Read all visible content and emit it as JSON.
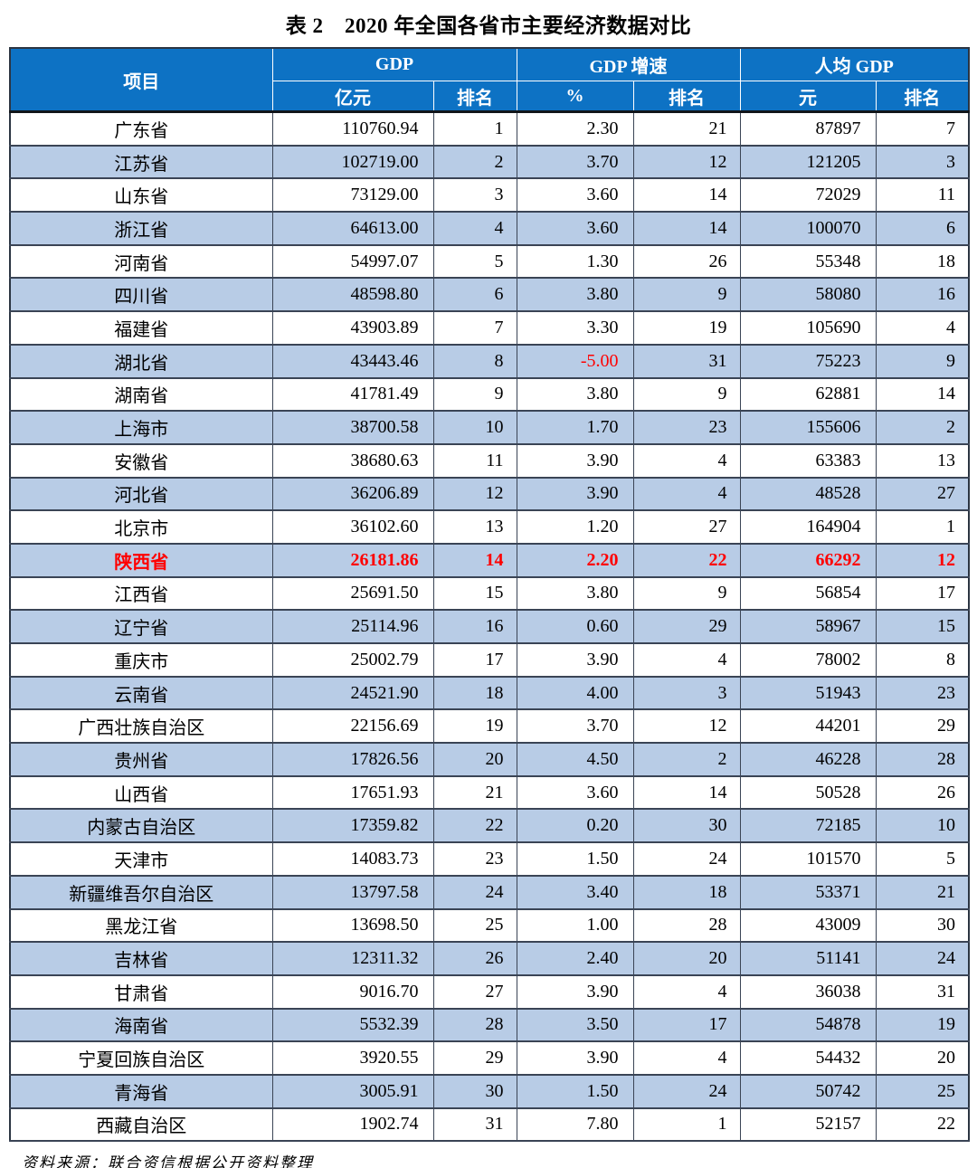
{
  "title": "表 2 2020 年全国各省市主要经济数据对比",
  "source_note": "资料来源：联合资信根据公开资料整理",
  "colors": {
    "header_bg": "#0d72c4",
    "header_text": "#ffffff",
    "alt_row_bg": "#b8cce6",
    "highlight_text": "#ff0000",
    "border": "#3a4455"
  },
  "table": {
    "header": {
      "item": "项目",
      "gdp_group": "GDP",
      "growth_group": "GDP 增速",
      "per_capita_group": "人均 GDP",
      "gdp_unit": "亿元",
      "gdp_rank": "排名",
      "growth_unit": "%",
      "growth_rank": "排名",
      "per_capita_unit": "元",
      "per_capita_rank": "排名"
    },
    "rows": [
      {
        "name": "广东省",
        "gdp": "110760.94",
        "gdp_rank": "1",
        "growth": "2.30",
        "growth_rank": "21",
        "pc_gdp": "87897",
        "pc_rank": "7",
        "highlight": false,
        "growth_red": false
      },
      {
        "name": "江苏省",
        "gdp": "102719.00",
        "gdp_rank": "2",
        "growth": "3.70",
        "growth_rank": "12",
        "pc_gdp": "121205",
        "pc_rank": "3",
        "highlight": false,
        "growth_red": false
      },
      {
        "name": "山东省",
        "gdp": "73129.00",
        "gdp_rank": "3",
        "growth": "3.60",
        "growth_rank": "14",
        "pc_gdp": "72029",
        "pc_rank": "11",
        "highlight": false,
        "growth_red": false
      },
      {
        "name": "浙江省",
        "gdp": "64613.00",
        "gdp_rank": "4",
        "growth": "3.60",
        "growth_rank": "14",
        "pc_gdp": "100070",
        "pc_rank": "6",
        "highlight": false,
        "growth_red": false
      },
      {
        "name": "河南省",
        "gdp": "54997.07",
        "gdp_rank": "5",
        "growth": "1.30",
        "growth_rank": "26",
        "pc_gdp": "55348",
        "pc_rank": "18",
        "highlight": false,
        "growth_red": false
      },
      {
        "name": "四川省",
        "gdp": "48598.80",
        "gdp_rank": "6",
        "growth": "3.80",
        "growth_rank": "9",
        "pc_gdp": "58080",
        "pc_rank": "16",
        "highlight": false,
        "growth_red": false
      },
      {
        "name": "福建省",
        "gdp": "43903.89",
        "gdp_rank": "7",
        "growth": "3.30",
        "growth_rank": "19",
        "pc_gdp": "105690",
        "pc_rank": "4",
        "highlight": false,
        "growth_red": false
      },
      {
        "name": "湖北省",
        "gdp": "43443.46",
        "gdp_rank": "8",
        "growth": "-5.00",
        "growth_rank": "31",
        "pc_gdp": "75223",
        "pc_rank": "9",
        "highlight": false,
        "growth_red": true
      },
      {
        "name": "湖南省",
        "gdp": "41781.49",
        "gdp_rank": "9",
        "growth": "3.80",
        "growth_rank": "9",
        "pc_gdp": "62881",
        "pc_rank": "14",
        "highlight": false,
        "growth_red": false
      },
      {
        "name": "上海市",
        "gdp": "38700.58",
        "gdp_rank": "10",
        "growth": "1.70",
        "growth_rank": "23",
        "pc_gdp": "155606",
        "pc_rank": "2",
        "highlight": false,
        "growth_red": false
      },
      {
        "name": "安徽省",
        "gdp": "38680.63",
        "gdp_rank": "11",
        "growth": "3.90",
        "growth_rank": "4",
        "pc_gdp": "63383",
        "pc_rank": "13",
        "highlight": false,
        "growth_red": false
      },
      {
        "name": "河北省",
        "gdp": "36206.89",
        "gdp_rank": "12",
        "growth": "3.90",
        "growth_rank": "4",
        "pc_gdp": "48528",
        "pc_rank": "27",
        "highlight": false,
        "growth_red": false
      },
      {
        "name": "北京市",
        "gdp": "36102.60",
        "gdp_rank": "13",
        "growth": "1.20",
        "growth_rank": "27",
        "pc_gdp": "164904",
        "pc_rank": "1",
        "highlight": false,
        "growth_red": false
      },
      {
        "name": "陕西省",
        "gdp": "26181.86",
        "gdp_rank": "14",
        "growth": "2.20",
        "growth_rank": "22",
        "pc_gdp": "66292",
        "pc_rank": "12",
        "highlight": true,
        "growth_red": false
      },
      {
        "name": "江西省",
        "gdp": "25691.50",
        "gdp_rank": "15",
        "growth": "3.80",
        "growth_rank": "9",
        "pc_gdp": "56854",
        "pc_rank": "17",
        "highlight": false,
        "growth_red": false
      },
      {
        "name": "辽宁省",
        "gdp": "25114.96",
        "gdp_rank": "16",
        "growth": "0.60",
        "growth_rank": "29",
        "pc_gdp": "58967",
        "pc_rank": "15",
        "highlight": false,
        "growth_red": false
      },
      {
        "name": "重庆市",
        "gdp": "25002.79",
        "gdp_rank": "17",
        "growth": "3.90",
        "growth_rank": "4",
        "pc_gdp": "78002",
        "pc_rank": "8",
        "highlight": false,
        "growth_red": false
      },
      {
        "name": "云南省",
        "gdp": "24521.90",
        "gdp_rank": "18",
        "growth": "4.00",
        "growth_rank": "3",
        "pc_gdp": "51943",
        "pc_rank": "23",
        "highlight": false,
        "growth_red": false
      },
      {
        "name": "广西壮族自治区",
        "gdp": "22156.69",
        "gdp_rank": "19",
        "growth": "3.70",
        "growth_rank": "12",
        "pc_gdp": "44201",
        "pc_rank": "29",
        "highlight": false,
        "growth_red": false
      },
      {
        "name": "贵州省",
        "gdp": "17826.56",
        "gdp_rank": "20",
        "growth": "4.50",
        "growth_rank": "2",
        "pc_gdp": "46228",
        "pc_rank": "28",
        "highlight": false,
        "growth_red": false
      },
      {
        "name": "山西省",
        "gdp": "17651.93",
        "gdp_rank": "21",
        "growth": "3.60",
        "growth_rank": "14",
        "pc_gdp": "50528",
        "pc_rank": "26",
        "highlight": false,
        "growth_red": false
      },
      {
        "name": "内蒙古自治区",
        "gdp": "17359.82",
        "gdp_rank": "22",
        "growth": "0.20",
        "growth_rank": "30",
        "pc_gdp": "72185",
        "pc_rank": "10",
        "highlight": false,
        "growth_red": false
      },
      {
        "name": "天津市",
        "gdp": "14083.73",
        "gdp_rank": "23",
        "growth": "1.50",
        "growth_rank": "24",
        "pc_gdp": "101570",
        "pc_rank": "5",
        "highlight": false,
        "growth_red": false
      },
      {
        "name": "新疆维吾尔自治区",
        "gdp": "13797.58",
        "gdp_rank": "24",
        "growth": "3.40",
        "growth_rank": "18",
        "pc_gdp": "53371",
        "pc_rank": "21",
        "highlight": false,
        "growth_red": false
      },
      {
        "name": "黑龙江省",
        "gdp": "13698.50",
        "gdp_rank": "25",
        "growth": "1.00",
        "growth_rank": "28",
        "pc_gdp": "43009",
        "pc_rank": "30",
        "highlight": false,
        "growth_red": false
      },
      {
        "name": "吉林省",
        "gdp": "12311.32",
        "gdp_rank": "26",
        "growth": "2.40",
        "growth_rank": "20",
        "pc_gdp": "51141",
        "pc_rank": "24",
        "highlight": false,
        "growth_red": false
      },
      {
        "name": "甘肃省",
        "gdp": "9016.70",
        "gdp_rank": "27",
        "growth": "3.90",
        "growth_rank": "4",
        "pc_gdp": "36038",
        "pc_rank": "31",
        "highlight": false,
        "growth_red": false
      },
      {
        "name": "海南省",
        "gdp": "5532.39",
        "gdp_rank": "28",
        "growth": "3.50",
        "growth_rank": "17",
        "pc_gdp": "54878",
        "pc_rank": "19",
        "highlight": false,
        "growth_red": false
      },
      {
        "name": "宁夏回族自治区",
        "gdp": "3920.55",
        "gdp_rank": "29",
        "growth": "3.90",
        "growth_rank": "4",
        "pc_gdp": "54432",
        "pc_rank": "20",
        "highlight": false,
        "growth_red": false
      },
      {
        "name": "青海省",
        "gdp": "3005.91",
        "gdp_rank": "30",
        "growth": "1.50",
        "growth_rank": "24",
        "pc_gdp": "50742",
        "pc_rank": "25",
        "highlight": false,
        "growth_red": false
      },
      {
        "name": "西藏自治区",
        "gdp": "1902.74",
        "gdp_rank": "31",
        "growth": "7.80",
        "growth_rank": "1",
        "pc_gdp": "52157",
        "pc_rank": "22",
        "highlight": false,
        "growth_red": false
      }
    ]
  }
}
